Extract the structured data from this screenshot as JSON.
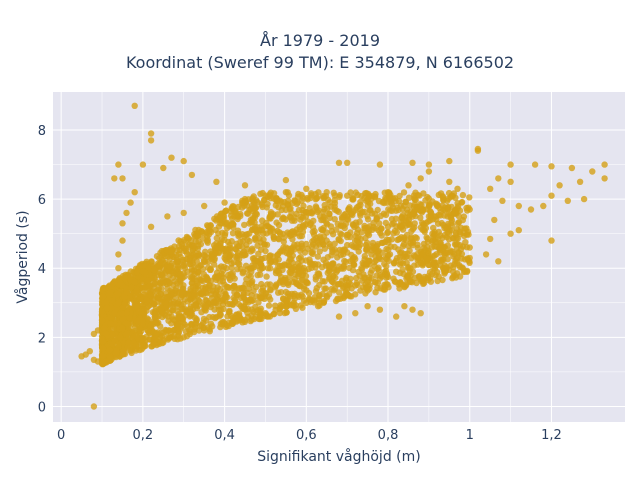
{
  "chart_data": {
    "type": "scatter",
    "title_line1": "År 1979 - 2019",
    "title_line2": "Koordinat (Sweref 99 TM): E 354879, N 6166502",
    "xlabel": "Signifikant våghöjd (m)",
    "ylabel": "Vågperiod (s)",
    "xlim": [
      -0.02,
      1.38
    ],
    "ylim": [
      -0.45,
      9.1
    ],
    "x_ticks": [
      {
        "value": 0,
        "label": "0"
      },
      {
        "value": 0.2,
        "label": "0,2"
      },
      {
        "value": 0.4,
        "label": "0,4"
      },
      {
        "value": 0.6,
        "label": "0,6"
      },
      {
        "value": 0.8,
        "label": "0,8"
      },
      {
        "value": 1.0,
        "label": "1"
      },
      {
        "value": 1.2,
        "label": "1,2"
      }
    ],
    "y_ticks": [
      {
        "value": 0,
        "label": "0"
      },
      {
        "value": 2,
        "label": "2"
      },
      {
        "value": 4,
        "label": "4"
      },
      {
        "value": 6,
        "label": "6"
      },
      {
        "value": 8,
        "label": "8"
      }
    ],
    "grid": true,
    "marker_color": "#D4A017",
    "points": [
      [
        0.05,
        1.45
      ],
      [
        0.06,
        1.5
      ],
      [
        0.07,
        1.6
      ],
      [
        0.08,
        1.35
      ],
      [
        0.09,
        1.3
      ],
      [
        0.1,
        1.25
      ],
      [
        0.11,
        1.3
      ],
      [
        0.12,
        1.4
      ],
      [
        0.08,
        0.0
      ],
      [
        0.08,
        2.1
      ],
      [
        0.09,
        2.2
      ],
      [
        0.1,
        2.5
      ],
      [
        0.1,
        2.75
      ],
      [
        0.11,
        3.0
      ],
      [
        0.12,
        3.3
      ],
      [
        0.13,
        3.6
      ],
      [
        0.14,
        4.0
      ],
      [
        0.14,
        4.4
      ],
      [
        0.15,
        4.8
      ],
      [
        0.15,
        5.3
      ],
      [
        0.16,
        5.6
      ],
      [
        0.17,
        5.9
      ],
      [
        0.18,
        6.2
      ],
      [
        0.13,
        6.6
      ],
      [
        0.15,
        6.6
      ],
      [
        0.2,
        7.0
      ],
      [
        0.14,
        7.0
      ],
      [
        0.18,
        8.7
      ],
      [
        0.22,
        7.9
      ],
      [
        0.22,
        7.7
      ],
      [
        0.27,
        7.2
      ],
      [
        0.3,
        7.1
      ],
      [
        0.25,
        6.9
      ],
      [
        0.32,
        6.7
      ],
      [
        0.38,
        6.5
      ],
      [
        0.45,
        6.4
      ],
      [
        0.55,
        6.55
      ],
      [
        0.68,
        7.05
      ],
      [
        0.7,
        7.05
      ],
      [
        0.78,
        7.0
      ],
      [
        0.86,
        7.05
      ],
      [
        0.9,
        7.0
      ],
      [
        0.95,
        7.1
      ],
      [
        1.02,
        7.4
      ],
      [
        1.02,
        7.45
      ],
      [
        1.1,
        7.0
      ],
      [
        1.16,
        7.0
      ],
      [
        1.2,
        6.95
      ],
      [
        1.25,
        6.9
      ],
      [
        1.3,
        6.8
      ],
      [
        1.33,
        7.0
      ],
      [
        1.33,
        6.6
      ],
      [
        1.27,
        6.5
      ],
      [
        1.22,
        6.4
      ],
      [
        1.2,
        6.1
      ],
      [
        1.24,
        5.95
      ],
      [
        1.28,
        6.0
      ],
      [
        1.18,
        5.8
      ],
      [
        1.15,
        5.7
      ],
      [
        1.12,
        5.8
      ],
      [
        1.1,
        6.5
      ],
      [
        1.07,
        6.6
      ],
      [
        1.05,
        6.3
      ],
      [
        1.08,
        5.95
      ],
      [
        1.06,
        5.4
      ],
      [
        1.1,
        5.0
      ],
      [
        1.12,
        5.1
      ],
      [
        1.05,
        4.85
      ],
      [
        1.0,
        4.6
      ],
      [
        1.07,
        4.2
      ],
      [
        1.04,
        4.4
      ],
      [
        1.2,
        4.8
      ],
      [
        1.0,
        4.3
      ],
      [
        0.97,
        4.3
      ],
      [
        0.93,
        4.2
      ],
      [
        0.9,
        4.1
      ],
      [
        0.88,
        4.15
      ],
      [
        0.85,
        4.0
      ],
      [
        0.82,
        3.9
      ],
      [
        0.8,
        3.75
      ],
      [
        0.78,
        3.7
      ],
      [
        0.75,
        3.6
      ],
      [
        0.72,
        3.5
      ],
      [
        0.7,
        3.4
      ],
      [
        0.68,
        3.3
      ],
      [
        0.65,
        3.2
      ],
      [
        0.6,
        3.0
      ],
      [
        0.55,
        2.9
      ],
      [
        0.5,
        2.7
      ],
      [
        0.45,
        2.5
      ],
      [
        0.4,
        2.4
      ],
      [
        0.35,
        2.2
      ],
      [
        0.3,
        2.0
      ],
      [
        0.25,
        1.85
      ],
      [
        0.2,
        1.7
      ],
      [
        0.15,
        1.5
      ],
      [
        0.12,
        1.35
      ],
      [
        0.84,
        2.9
      ],
      [
        0.86,
        2.8
      ],
      [
        0.88,
        2.7
      ],
      [
        0.82,
        2.6
      ],
      [
        0.78,
        2.8
      ],
      [
        0.75,
        2.9
      ],
      [
        0.72,
        2.7
      ],
      [
        0.68,
        2.6
      ],
      [
        0.92,
        5.8
      ],
      [
        0.95,
        5.6
      ],
      [
        0.98,
        5.9
      ],
      [
        1.0,
        5.7
      ],
      [
        0.9,
        5.5
      ],
      [
        0.85,
        5.3
      ],
      [
        0.8,
        5.2
      ],
      [
        0.75,
        5.0
      ],
      [
        0.7,
        4.9
      ],
      [
        0.65,
        4.8
      ],
      [
        0.6,
        4.7
      ],
      [
        0.55,
        4.6
      ],
      [
        0.5,
        4.5
      ],
      [
        0.45,
        4.4
      ],
      [
        0.4,
        4.3
      ],
      [
        0.35,
        4.2
      ],
      [
        0.3,
        4.1
      ],
      [
        0.25,
        4.0
      ],
      [
        0.2,
        3.9
      ],
      [
        0.18,
        3.6
      ],
      [
        0.16,
        3.3
      ],
      [
        0.14,
        3.0
      ],
      [
        0.13,
        2.7
      ],
      [
        0.12,
        2.4
      ],
      [
        0.11,
        2.1
      ],
      [
        0.1,
        1.9
      ],
      [
        0.22,
        5.2
      ],
      [
        0.26,
        5.5
      ],
      [
        0.3,
        5.6
      ],
      [
        0.35,
        5.8
      ],
      [
        0.4,
        5.9
      ],
      [
        0.45,
        6.0
      ],
      [
        0.5,
        6.1
      ],
      [
        0.55,
        6.2
      ],
      [
        0.6,
        6.3
      ],
      [
        0.65,
        6.2
      ],
      [
        0.7,
        6.1
      ],
      [
        0.75,
        6.0
      ],
      [
        0.8,
        6.2
      ],
      [
        0.85,
        6.4
      ],
      [
        0.88,
        6.6
      ],
      [
        0.9,
        6.8
      ],
      [
        0.95,
        6.5
      ],
      [
        0.97,
        6.3
      ]
    ]
  }
}
